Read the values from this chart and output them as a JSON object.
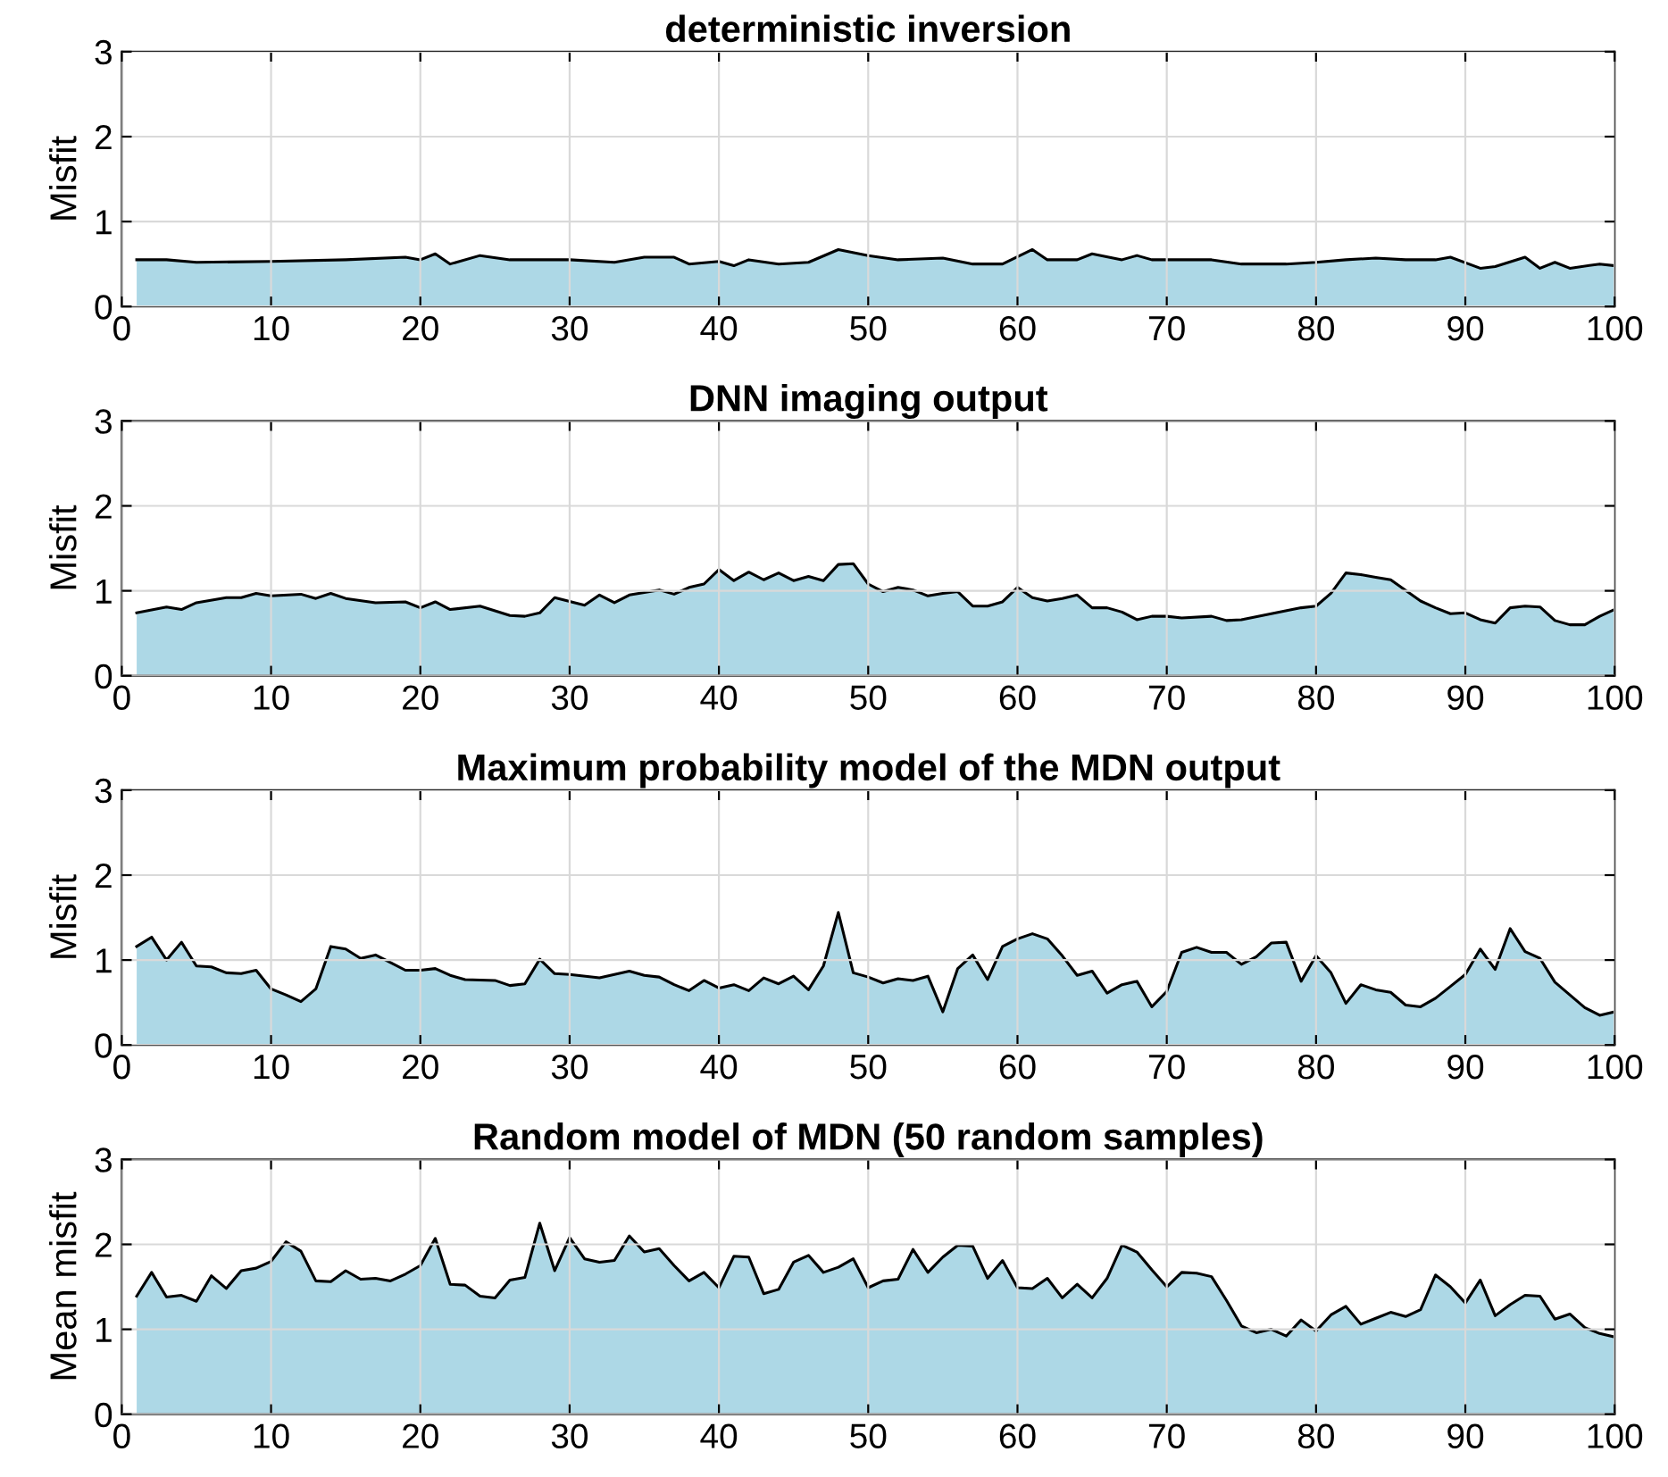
{
  "chart_data": [
    {
      "type": "area",
      "title": "deterministic inversion",
      "ylabel": "Misfit",
      "xlim": [
        0,
        100
      ],
      "ylim": [
        0,
        3
      ],
      "xticks": [
        0,
        10,
        20,
        30,
        40,
        50,
        60,
        70,
        80,
        90,
        100
      ],
      "yticks": [
        0,
        1,
        2,
        3
      ],
      "grid": true,
      "legend": false,
      "series": [
        {
          "color": "#add8e6",
          "x": [
            1,
            3,
            5,
            10,
            15,
            19,
            20,
            21,
            22,
            24,
            26,
            30,
            33,
            35,
            37,
            38,
            40,
            41,
            42,
            44,
            46,
            48,
            50,
            52,
            55,
            57,
            59,
            61,
            62,
            64,
            65,
            67,
            68,
            69,
            73,
            75,
            78,
            80,
            82,
            84,
            86,
            88,
            89,
            91,
            92,
            94,
            95,
            96,
            97,
            99,
            100
          ],
          "values": [
            0.55,
            0.55,
            0.52,
            0.53,
            0.55,
            0.58,
            0.55,
            0.62,
            0.5,
            0.6,
            0.55,
            0.55,
            0.52,
            0.58,
            0.58,
            0.5,
            0.53,
            0.48,
            0.55,
            0.5,
            0.52,
            0.67,
            0.6,
            0.55,
            0.57,
            0.5,
            0.5,
            0.67,
            0.55,
            0.55,
            0.62,
            0.55,
            0.6,
            0.55,
            0.55,
            0.5,
            0.5,
            0.52,
            0.55,
            0.57,
            0.55,
            0.55,
            0.58,
            0.45,
            0.47,
            0.58,
            0.45,
            0.52,
            0.45,
            0.5,
            0.48
          ]
        }
      ]
    },
    {
      "type": "area",
      "title": "DNN imaging output",
      "ylabel": "Misfit",
      "xlim": [
        0,
        100
      ],
      "ylim": [
        0,
        3
      ],
      "xticks": [
        0,
        10,
        20,
        30,
        40,
        50,
        60,
        70,
        80,
        90,
        100
      ],
      "yticks": [
        0,
        1,
        2,
        3
      ],
      "grid": true,
      "legend": false,
      "series": [
        {
          "color": "#add8e6",
          "x": [
            1,
            3,
            4,
            5,
            7,
            8,
            9,
            10,
            12,
            13,
            14,
            15,
            17,
            19,
            20,
            21,
            22,
            24,
            26,
            27,
            28,
            29,
            31,
            32,
            33,
            34,
            36,
            37,
            38,
            39,
            40,
            41,
            42,
            43,
            44,
            45,
            46,
            47,
            48,
            49,
            50,
            51,
            52,
            53,
            54,
            55,
            56,
            57,
            58,
            59,
            60,
            61,
            62,
            63,
            64,
            65,
            66,
            67,
            68,
            69,
            70,
            71,
            73,
            74,
            75,
            77,
            79,
            80,
            81,
            82,
            83,
            84,
            85,
            87,
            88,
            89,
            90,
            91,
            92,
            93,
            94,
            95,
            96,
            97,
            98,
            99,
            100
          ],
          "values": [
            0.74,
            0.81,
            0.78,
            0.86,
            0.92,
            0.92,
            0.97,
            0.94,
            0.96,
            0.91,
            0.97,
            0.91,
            0.86,
            0.87,
            0.8,
            0.87,
            0.78,
            0.82,
            0.71,
            0.7,
            0.74,
            0.92,
            0.83,
            0.95,
            0.86,
            0.95,
            1.01,
            0.96,
            1.04,
            1.08,
            1.25,
            1.12,
            1.22,
            1.13,
            1.21,
            1.12,
            1.17,
            1.12,
            1.31,
            1.32,
            1.08,
            0.99,
            1.04,
            1.01,
            0.94,
            0.97,
            0.99,
            0.82,
            0.82,
            0.87,
            1.04,
            0.92,
            0.88,
            0.91,
            0.95,
            0.8,
            0.8,
            0.75,
            0.66,
            0.7,
            0.7,
            0.68,
            0.7,
            0.65,
            0.66,
            0.73,
            0.8,
            0.82,
            0.97,
            1.21,
            1.19,
            1.16,
            1.13,
            0.88,
            0.8,
            0.73,
            0.74,
            0.66,
            0.62,
            0.8,
            0.82,
            0.81,
            0.65,
            0.6,
            0.6,
            0.7,
            0.78
          ]
        }
      ]
    },
    {
      "type": "area",
      "title": "Maximum probability model of the MDN output",
      "ylabel": "Misfit",
      "xlim": [
        0,
        100
      ],
      "ylim": [
        0,
        3
      ],
      "xticks": [
        0,
        10,
        20,
        30,
        40,
        50,
        60,
        70,
        80,
        90,
        100
      ],
      "yticks": [
        0,
        1,
        2,
        3
      ],
      "grid": true,
      "legend": false,
      "series": [
        {
          "color": "#add8e6",
          "x": [
            1,
            2,
            3,
            4,
            5,
            6,
            7,
            8,
            9,
            10,
            11,
            12,
            13,
            14,
            15,
            16,
            17,
            18,
            19,
            20,
            21,
            22,
            23,
            25,
            26,
            27,
            28,
            29,
            30,
            32,
            34,
            35,
            36,
            37,
            38,
            39,
            40,
            41,
            42,
            43,
            44,
            45,
            46,
            47,
            48,
            49,
            50,
            51,
            52,
            53,
            54,
            55,
            56,
            57,
            58,
            59,
            60,
            61,
            62,
            63,
            64,
            65,
            66,
            67,
            68,
            69,
            70,
            71,
            72,
            73,
            74,
            75,
            76,
            77,
            78,
            79,
            80,
            81,
            82,
            83,
            84,
            85,
            86,
            87,
            88,
            89,
            90,
            91,
            92,
            93,
            94,
            95,
            96,
            97,
            98,
            99,
            100
          ],
          "values": [
            1.16,
            1.27,
            1.0,
            1.21,
            0.93,
            0.92,
            0.85,
            0.84,
            0.88,
            0.66,
            0.59,
            0.51,
            0.66,
            1.16,
            1.13,
            1.02,
            1.06,
            0.97,
            0.88,
            0.88,
            0.9,
            0.82,
            0.77,
            0.76,
            0.7,
            0.72,
            1.01,
            0.84,
            0.83,
            0.79,
            0.87,
            0.82,
            0.8,
            0.71,
            0.64,
            0.76,
            0.67,
            0.71,
            0.64,
            0.79,
            0.72,
            0.81,
            0.65,
            0.93,
            1.56,
            0.85,
            0.8,
            0.73,
            0.78,
            0.76,
            0.81,
            0.39,
            0.9,
            1.06,
            0.77,
            1.16,
            1.25,
            1.31,
            1.25,
            1.05,
            0.82,
            0.87,
            0.61,
            0.71,
            0.75,
            0.45,
            0.63,
            1.09,
            1.15,
            1.09,
            1.09,
            0.95,
            1.04,
            1.2,
            1.21,
            0.75,
            1.05,
            0.85,
            0.49,
            0.71,
            0.65,
            0.62,
            0.47,
            0.45,
            0.55,
            0.69,
            0.83,
            1.13,
            0.89,
            1.37,
            1.1,
            1.02,
            0.74,
            0.59,
            0.44,
            0.35,
            0.39
          ]
        }
      ]
    },
    {
      "type": "area",
      "title": "Random model of MDN (50 random samples)",
      "ylabel": "Mean misfit",
      "xlim": [
        0,
        100
      ],
      "ylim": [
        0,
        3
      ],
      "xticks": [
        0,
        10,
        20,
        30,
        40,
        50,
        60,
        70,
        80,
        90,
        100
      ],
      "yticks": [
        0,
        1,
        2,
        3
      ],
      "grid": true,
      "legend": false,
      "series": [
        {
          "color": "#add8e6",
          "x": [
            1,
            2,
            3,
            4,
            5,
            6,
            7,
            8,
            9,
            10,
            11,
            12,
            13,
            14,
            15,
            16,
            17,
            18,
            19,
            20,
            21,
            22,
            23,
            24,
            25,
            26,
            27,
            28,
            29,
            30,
            31,
            32,
            33,
            34,
            35,
            36,
            37,
            38,
            39,
            40,
            41,
            42,
            43,
            44,
            45,
            46,
            47,
            48,
            49,
            50,
            51,
            52,
            53,
            54,
            55,
            56,
            57,
            58,
            59,
            60,
            61,
            62,
            63,
            64,
            65,
            66,
            67,
            68,
            69,
            70,
            71,
            72,
            73,
            74,
            75,
            76,
            77,
            78,
            79,
            80,
            81,
            82,
            83,
            84,
            85,
            86,
            87,
            88,
            89,
            90,
            91,
            92,
            93,
            94,
            95,
            96,
            97,
            98,
            99,
            100
          ],
          "values": [
            1.39,
            1.67,
            1.38,
            1.4,
            1.33,
            1.63,
            1.48,
            1.69,
            1.72,
            1.8,
            2.03,
            1.92,
            1.57,
            1.56,
            1.69,
            1.59,
            1.6,
            1.57,
            1.65,
            1.75,
            2.07,
            1.53,
            1.52,
            1.39,
            1.37,
            1.58,
            1.61,
            2.25,
            1.69,
            2.08,
            1.83,
            1.79,
            1.81,
            2.1,
            1.91,
            1.95,
            1.75,
            1.57,
            1.67,
            1.49,
            1.86,
            1.85,
            1.42,
            1.47,
            1.79,
            1.87,
            1.67,
            1.73,
            1.83,
            1.49,
            1.57,
            1.59,
            1.94,
            1.67,
            1.85,
            1.99,
            1.98,
            1.6,
            1.81,
            1.49,
            1.48,
            1.6,
            1.37,
            1.53,
            1.37,
            1.6,
            1.99,
            1.91,
            1.7,
            1.5,
            1.67,
            1.66,
            1.62,
            1.34,
            1.04,
            0.96,
            1.0,
            0.92,
            1.11,
            0.98,
            1.17,
            1.27,
            1.06,
            1.13,
            1.2,
            1.15,
            1.23,
            1.64,
            1.5,
            1.31,
            1.58,
            1.16,
            1.29,
            1.4,
            1.39,
            1.12,
            1.18,
            1.02,
            0.95,
            0.91
          ]
        }
      ]
    }
  ]
}
